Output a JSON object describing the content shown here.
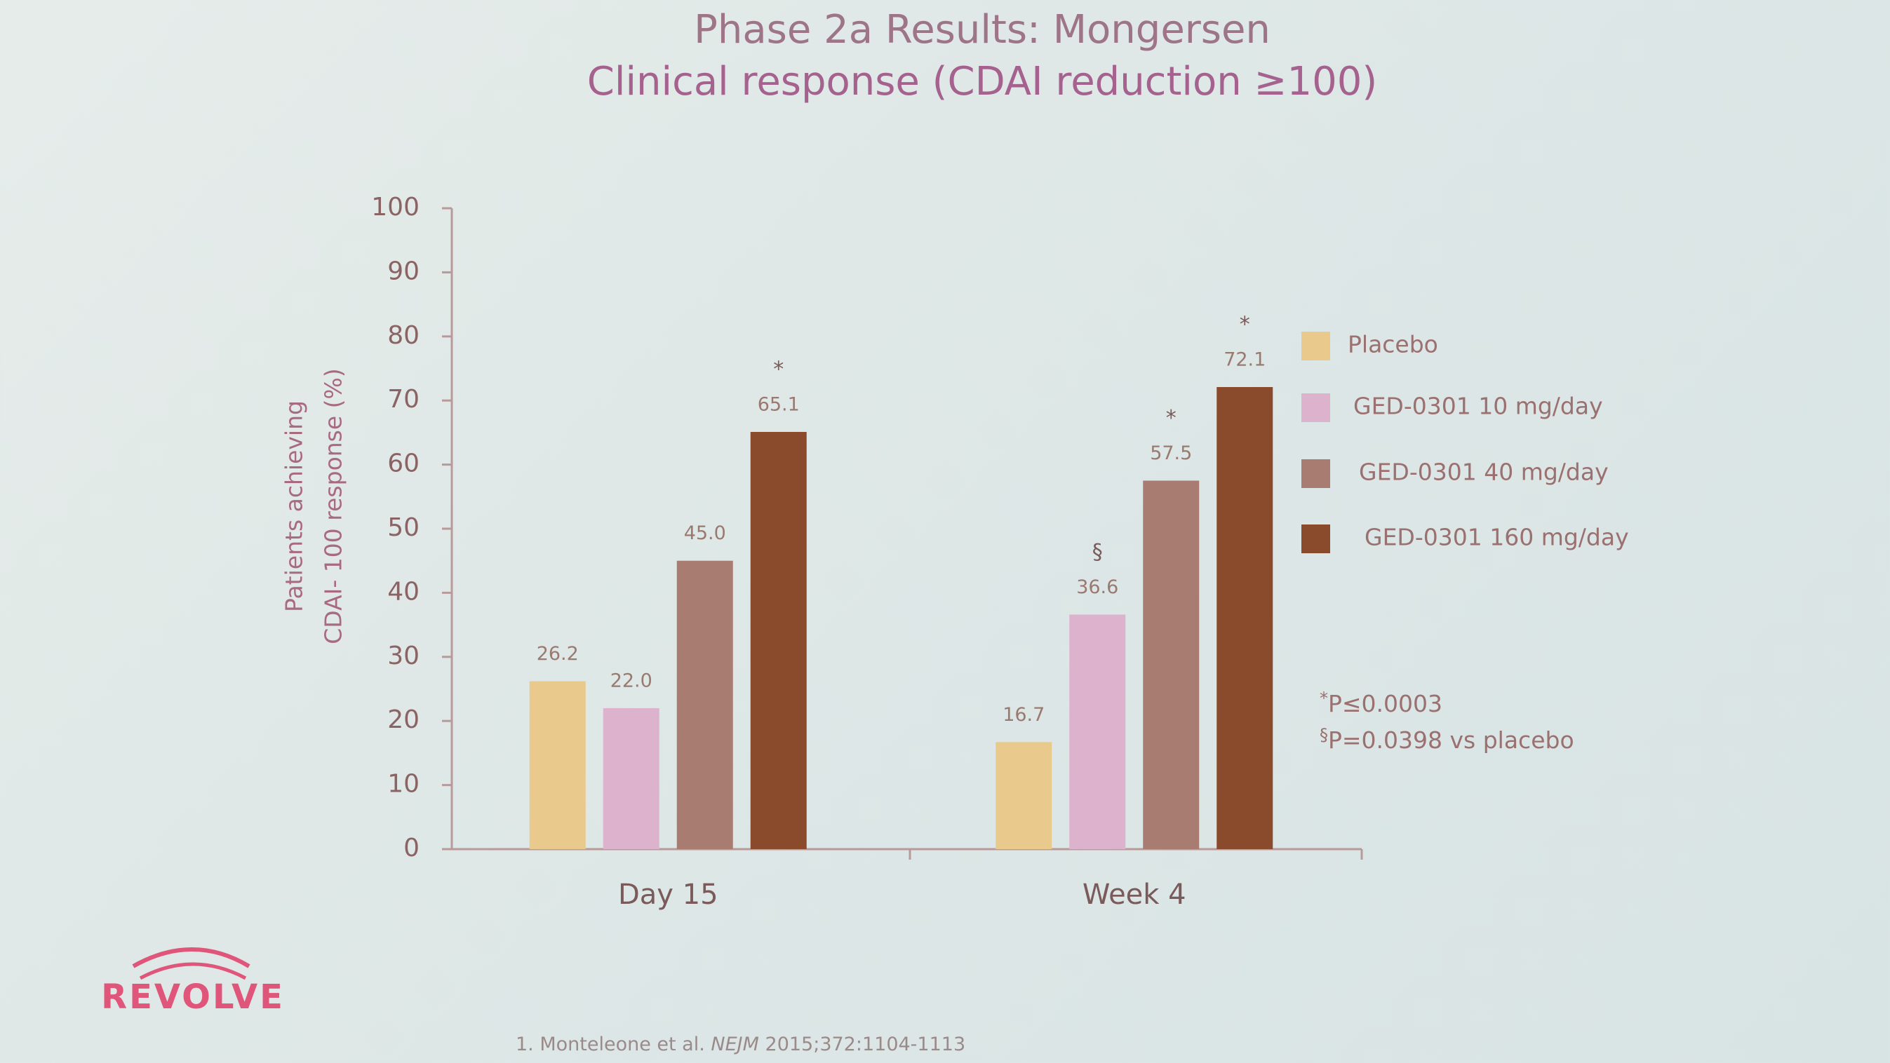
{
  "chart_data": {
    "type": "bar",
    "title": "Phase 2a Results: Mongersen",
    "subtitle": "Clinical response (CDAI reduction ≥100)",
    "ylabel": [
      "Patients achieving",
      "CDAI- 100 response (%)"
    ],
    "categories": [
      "Day 15",
      "Week 4"
    ],
    "series": [
      {
        "name": "Placebo",
        "color": "#e9c98c",
        "values": [
          26.2,
          16.7
        ],
        "value_labels": [
          "26.2",
          "16.7"
        ],
        "markers": [
          null,
          null
        ]
      },
      {
        "name": "GED-0301 10 mg/day",
        "color": "#dcb2cd",
        "values": [
          22.0,
          36.6
        ],
        "value_labels": [
          "22.0",
          "36.6"
        ],
        "markers": [
          null,
          "§"
        ]
      },
      {
        "name": "GED-0301 40 mg/day",
        "color": "#a97c72",
        "values": [
          45.0,
          57.5
        ],
        "value_labels": [
          "45.0",
          "57.5"
        ],
        "markers": [
          null,
          "*"
        ]
      },
      {
        "name": "GED-0301 160 mg/day",
        "color": "#8a4a2c",
        "values": [
          65.1,
          72.1
        ],
        "value_labels": [
          "65.1",
          "72.1"
        ],
        "markers": [
          "*",
          "*"
        ]
      }
    ],
    "ylim": [
      0,
      100
    ],
    "yticks": [
      0,
      10,
      20,
      30,
      40,
      50,
      60,
      70,
      80,
      90,
      100
    ],
    "grid": false,
    "legend": "right",
    "footnotes": [
      {
        "symbol": "*",
        "text": "P≤0.0003"
      },
      {
        "symbol": "§",
        "text": "P=0.0398 vs placebo"
      }
    ]
  },
  "logo": "REVOLVE",
  "citation": [
    "1. Monteleone et al. ",
    "NEJM",
    " 2015;372:1104-1113"
  ]
}
